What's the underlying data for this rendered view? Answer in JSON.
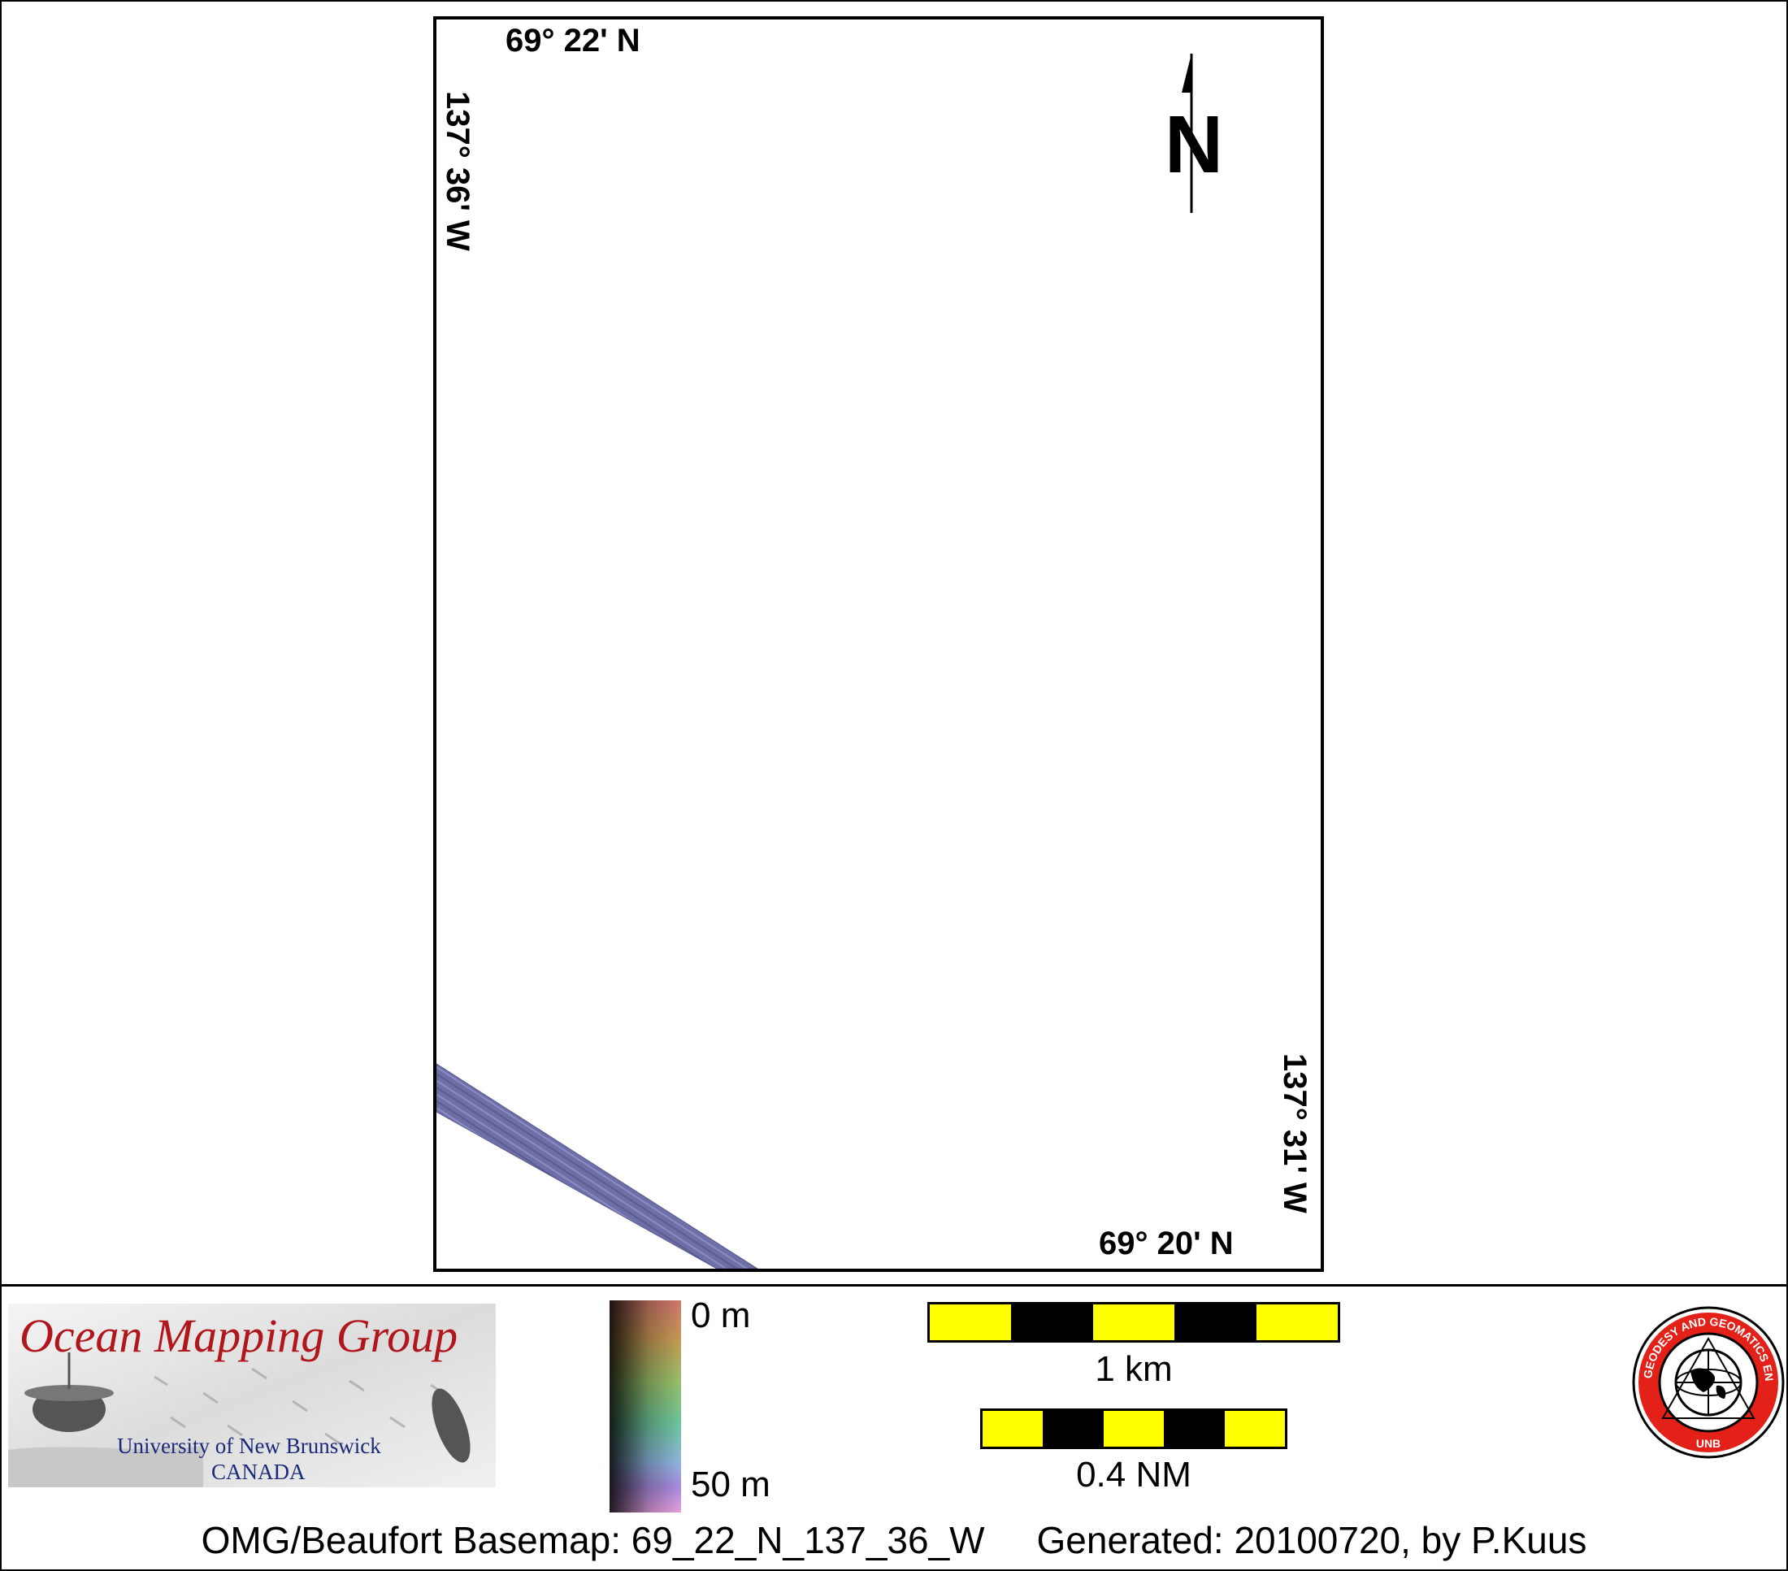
{
  "map": {
    "top_latitude": "69° 22' N",
    "bottom_latitude": "69° 20' N",
    "left_longitude": "137° 36' W",
    "right_longitude": "137° 31' W",
    "north_label": "N",
    "swath_color": "#6f6fa8"
  },
  "legend": {
    "omg_logo": {
      "title": "Ocean Mapping Group",
      "line1": "University of New Brunswick",
      "line2": "CANADA"
    },
    "colorbar": {
      "min_label": "0 m",
      "max_label": "50 m"
    },
    "scalebar_km": {
      "label": "1 km",
      "segments": [
        "yellow",
        "black",
        "yellow",
        "black",
        "yellow"
      ]
    },
    "scalebar_nm": {
      "label": "0.4 NM",
      "segments": [
        "yellow",
        "black",
        "yellow",
        "black",
        "yellow"
      ]
    },
    "gge_logo": {
      "ring_text": "GEODESY AND GEOMATICS ENGINEERING",
      "bottom_text": "UNB"
    }
  },
  "footer": {
    "basemap": "OMG/Beaufort Basemap: 69_22_N_137_36_W",
    "generated": "Generated: 20100720, by P.Kuus"
  },
  "colors": {
    "scale_yellow": "#ffff00",
    "scale_black": "#000000",
    "omg_red": "#b0161b",
    "omg_blue": "#1a2a7a",
    "gge_red": "#e32119"
  }
}
